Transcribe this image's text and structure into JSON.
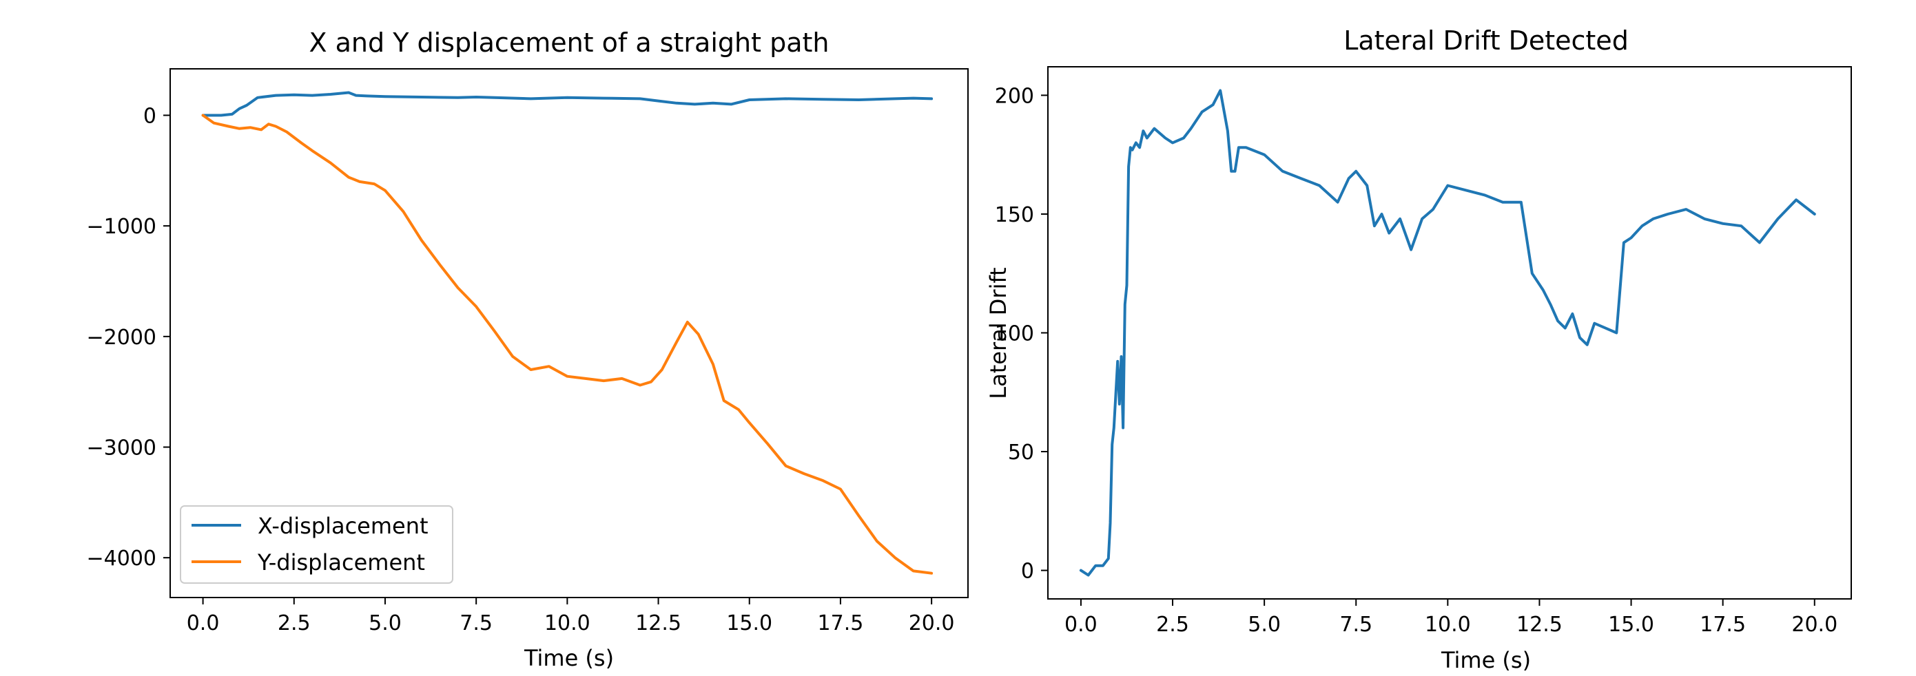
{
  "chart_data": [
    {
      "type": "line",
      "title": "X and Y displacement of a straight path",
      "xlabel": "Time (s)",
      "ylabel": "",
      "xlim": [
        -0.9,
        21.0
      ],
      "ylim": [
        -4360,
        420
      ],
      "xticks": [
        0,
        2.5,
        5,
        7.5,
        10,
        12.5,
        15,
        17.5,
        20
      ],
      "xtick_labels": [
        "0.0",
        "2.5",
        "5.0",
        "7.5",
        "10.0",
        "12.5",
        "15.0",
        "17.5",
        "20.0"
      ],
      "yticks": [
        0,
        -1000,
        -2000,
        -3000,
        -4000
      ],
      "ytick_labels": [
        "0",
        "−1000",
        "−2000",
        "−3000",
        "−4000"
      ],
      "grid": false,
      "legend": "lower-left",
      "series": [
        {
          "name": "X-displacement",
          "color": "#1f77b4",
          "x": [
            0,
            0.5,
            0.8,
            1.0,
            1.2,
            1.5,
            2.0,
            2.5,
            3.0,
            3.5,
            4.0,
            4.2,
            4.5,
            5.0,
            6.0,
            7.0,
            7.5,
            8.0,
            9.0,
            10.0,
            11.0,
            12.0,
            12.5,
            13.0,
            13.5,
            14.0,
            14.5,
            15.0,
            16.0,
            17.0,
            18.0,
            19.0,
            19.5,
            20.0
          ],
          "y": [
            0,
            0,
            10,
            60,
            90,
            160,
            180,
            185,
            180,
            190,
            205,
            180,
            175,
            170,
            165,
            160,
            165,
            160,
            150,
            160,
            155,
            150,
            130,
            110,
            100,
            110,
            100,
            140,
            150,
            145,
            140,
            150,
            155,
            150
          ]
        },
        {
          "name": "Y-displacement",
          "color": "#ff7f0e",
          "x": [
            0,
            0.3,
            0.7,
            1.0,
            1.3,
            1.6,
            1.8,
            2.0,
            2.3,
            2.7,
            3.0,
            3.5,
            4.0,
            4.3,
            4.7,
            5.0,
            5.5,
            6.0,
            6.5,
            7.0,
            7.5,
            8.0,
            8.5,
            9.0,
            9.5,
            10.0,
            10.5,
            11.0,
            11.5,
            12.0,
            12.3,
            12.6,
            13.0,
            13.3,
            13.6,
            14.0,
            14.3,
            14.7,
            15.0,
            15.5,
            16.0,
            16.5,
            17.0,
            17.5,
            18.0,
            18.5,
            19.0,
            19.5,
            20.0
          ],
          "y": [
            0,
            -70,
            -100,
            -120,
            -110,
            -130,
            -80,
            -100,
            -150,
            -250,
            -320,
            -430,
            -560,
            -600,
            -620,
            -680,
            -870,
            -1130,
            -1350,
            -1560,
            -1730,
            -1950,
            -2180,
            -2300,
            -2270,
            -2360,
            -2380,
            -2400,
            -2380,
            -2440,
            -2410,
            -2300,
            -2050,
            -1870,
            -1980,
            -2250,
            -2580,
            -2660,
            -2780,
            -2970,
            -3170,
            -3240,
            -3300,
            -3380,
            -3620,
            -3850,
            -4000,
            -4120,
            -4140
          ]
        }
      ]
    },
    {
      "type": "line",
      "title": "Lateral Drift Detected",
      "xlabel": "Time (s)",
      "ylabel": "Lateral Drift",
      "xlim": [
        -0.9,
        21.0
      ],
      "ylim": [
        -12,
        212
      ],
      "xticks": [
        0,
        2.5,
        5,
        7.5,
        10,
        12.5,
        15,
        17.5,
        20
      ],
      "xtick_labels": [
        "0.0",
        "2.5",
        "5.0",
        "7.5",
        "10.0",
        "12.5",
        "15.0",
        "17.5",
        "20.0"
      ],
      "yticks": [
        0,
        50,
        100,
        150,
        200
      ],
      "ytick_labels": [
        "0",
        "50",
        "100",
        "150",
        "200"
      ],
      "grid": false,
      "legend": "none",
      "series": [
        {
          "color": "#1f77b4",
          "x": [
            0,
            0.2,
            0.4,
            0.6,
            0.75,
            0.8,
            0.85,
            0.9,
            1.0,
            1.05,
            1.1,
            1.15,
            1.2,
            1.25,
            1.3,
            1.35,
            1.4,
            1.5,
            1.6,
            1.7,
            1.8,
            2.0,
            2.3,
            2.5,
            2.8,
            3.0,
            3.3,
            3.6,
            3.8,
            4.0,
            4.1,
            4.2,
            4.3,
            4.5,
            5.0,
            5.5,
            6.0,
            6.5,
            7.0,
            7.3,
            7.5,
            7.8,
            8.0,
            8.2,
            8.4,
            8.7,
            9.0,
            9.3,
            9.6,
            10.0,
            10.5,
            11.0,
            11.5,
            12.0,
            12.3,
            12.6,
            12.8,
            13.0,
            13.2,
            13.4,
            13.6,
            13.8,
            14.0,
            14.3,
            14.6,
            14.8,
            15.0,
            15.3,
            15.6,
            16.0,
            16.5,
            17.0,
            17.5,
            18.0,
            18.5,
            19.0,
            19.5,
            20.0
          ],
          "y": [
            0,
            -2,
            2,
            2,
            5,
            20,
            53,
            60,
            88,
            70,
            90,
            60,
            112,
            120,
            170,
            178,
            177,
            180,
            178,
            185,
            182,
            186,
            182,
            180,
            182,
            186,
            193,
            196,
            202,
            185,
            168,
            168,
            178,
            178,
            175,
            168,
            165,
            162,
            155,
            165,
            168,
            162,
            145,
            150,
            142,
            148,
            135,
            148,
            152,
            162,
            160,
            158,
            155,
            155,
            125,
            118,
            112,
            105,
            102,
            108,
            98,
            95,
            104,
            102,
            100,
            138,
            140,
            145,
            148,
            150,
            152,
            148,
            146,
            145,
            138,
            148,
            156,
            150
          ]
        }
      ]
    }
  ]
}
